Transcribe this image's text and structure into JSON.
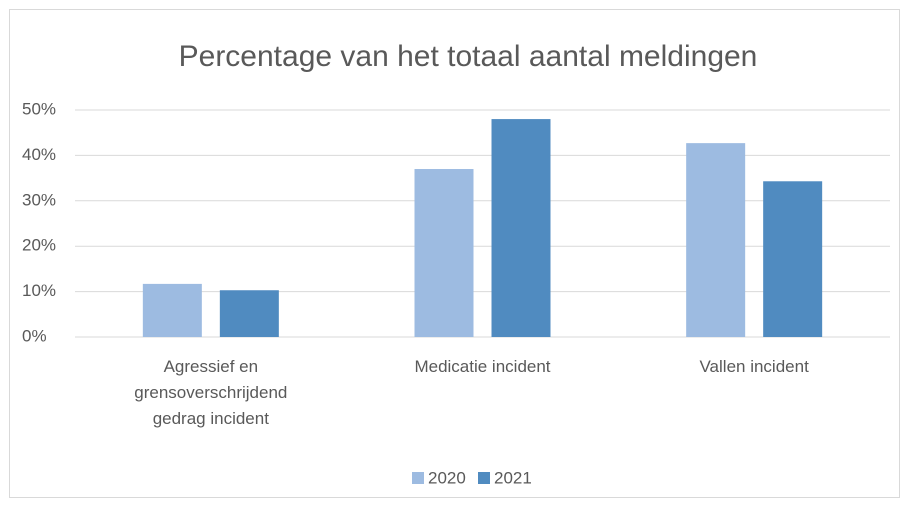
{
  "chart_data": {
    "type": "bar",
    "title": "Percentage van het totaal aantal meldingen",
    "categories": [
      "Agressief en grensoverschrijdend gedrag incident",
      "Medicatie incident",
      "Vallen incident"
    ],
    "series": [
      {
        "name": "2020",
        "color": "#9dbbe1",
        "values": [
          11.7,
          37,
          42.7
        ]
      },
      {
        "name": "2021",
        "color": "#508bc0",
        "values": [
          10.3,
          48,
          34.3
        ]
      }
    ],
    "ylim": [
      0,
      50
    ],
    "yticks": [
      {
        "value": 0,
        "label": "0%"
      },
      {
        "value": 10,
        "label": "10%"
      },
      {
        "value": 20,
        "label": "20%"
      },
      {
        "value": 30,
        "label": "30%"
      },
      {
        "value": 40,
        "label": "40%"
      },
      {
        "value": 50,
        "label": "50%"
      }
    ],
    "grid": true,
    "legend": "bottom"
  }
}
